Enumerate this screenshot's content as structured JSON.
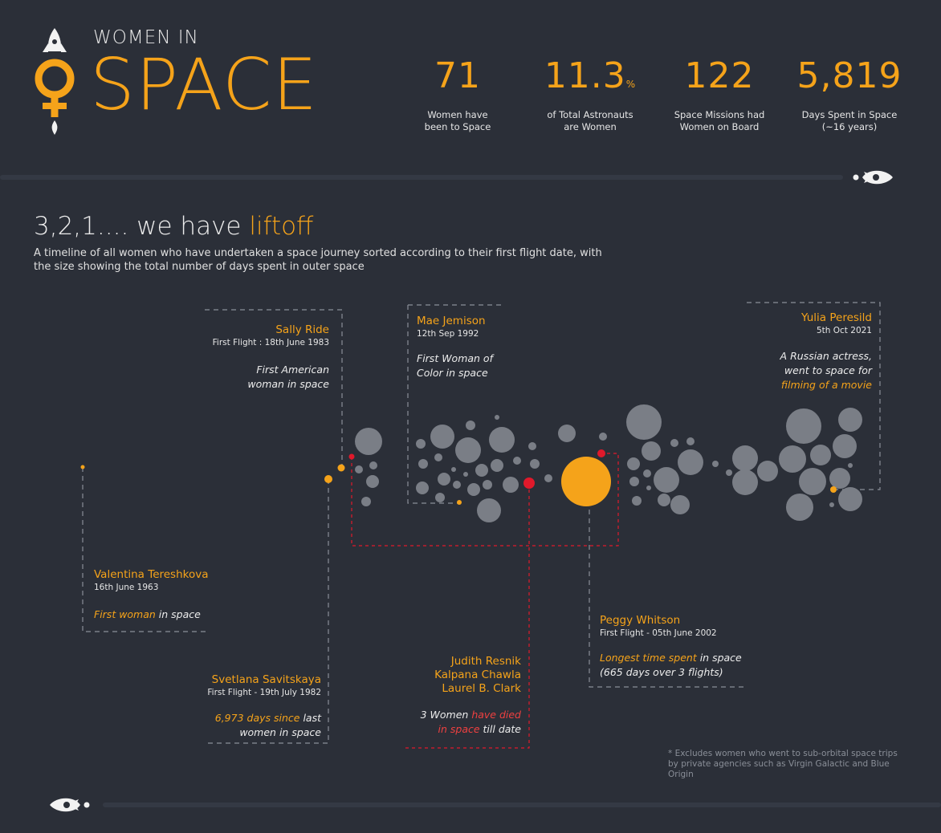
{
  "header": {
    "title_small": "WOMEN IN",
    "title_big": "SPACE"
  },
  "stats": [
    {
      "num": "71",
      "unit": "",
      "desc": "Women have\nbeen to Space"
    },
    {
      "num": "11.3",
      "unit": "%",
      "desc": "of Total Astronauts\nare Women"
    },
    {
      "num": "122",
      "unit": "",
      "desc": "Space Missions had\nWomen on Board"
    },
    {
      "num": "5,819",
      "unit": "",
      "desc": "Days Spent in Space\n(~16 years)"
    }
  ],
  "section": {
    "heading_a": "3,2,1.... we have ",
    "heading_b": "liftoff",
    "subtitle": "A timeline of all women who have undertaken a space journey sorted according to their first flight date, with the size showing the total number of days spent in outer space"
  },
  "annotations": {
    "tereshkova": {
      "name": "Valentina Tereshkova",
      "date": "16th June 1963",
      "desc_hl": "First woman",
      "desc_rest": " in space"
    },
    "ride": {
      "name": "Sally Ride",
      "date": "First Flight : 18th June 1983",
      "desc": "First American woman in space"
    },
    "savitskaya": {
      "name": "Svetlana Savitskaya",
      "date": "First Flight - 19th July 1982",
      "desc_hl": "6,973 days since",
      "desc_rest": " last women in space"
    },
    "jemison": {
      "name": "Mae Jemison",
      "date": "12th Sep 1992",
      "desc": "First Woman of Color in space"
    },
    "died": {
      "name1": "Judith Resnik",
      "name2": "Kalpana Chawla",
      "name3": "Laurel B. Clark",
      "desc_a": "3 Women ",
      "desc_hl": "have died in space",
      "desc_rest": " till date"
    },
    "whitson": {
      "name": "Peggy Whitson",
      "date": "First Flight - 05th June 2002",
      "desc_hl": "Longest time spent",
      "desc_rest": " in space",
      "desc2": "(665 days over 3 flights)"
    },
    "peresild": {
      "name": "Yulia Peresild",
      "date": "5th Oct 2021",
      "desc_a": "A Russian actress, went to space for ",
      "desc_hl": "filming of a movie"
    }
  },
  "footnote": "* Excludes women who went to sub-orbital space trips by private agencies such as Virgin Galactic and Blue Origin",
  "chart_data": {
    "type": "scatter",
    "encoding": "x = order of first flight date, bubble size = total days spent in space",
    "colors": {
      "default": "#7a7e86",
      "highlight": "#f5a31a",
      "died": "#e0192b"
    },
    "points": [
      {
        "name": "Valentina Tereshkova",
        "group": "highlight"
      },
      {
        "name": "Svetlana Savitskaya",
        "group": "highlight"
      },
      {
        "name": "Sally Ride",
        "group": "highlight"
      },
      {
        "name": "Judith Resnik",
        "group": "died"
      },
      {
        "name": "Mae Jemison",
        "group": "highlight"
      },
      {
        "name": "Kalpana Chawla",
        "group": "died"
      },
      {
        "name": "Peggy Whitson",
        "group": "highlight",
        "days": 665
      },
      {
        "name": "Laurel B. Clark",
        "group": "died"
      },
      {
        "name": "Yulia Peresild",
        "group": "highlight"
      }
    ]
  }
}
